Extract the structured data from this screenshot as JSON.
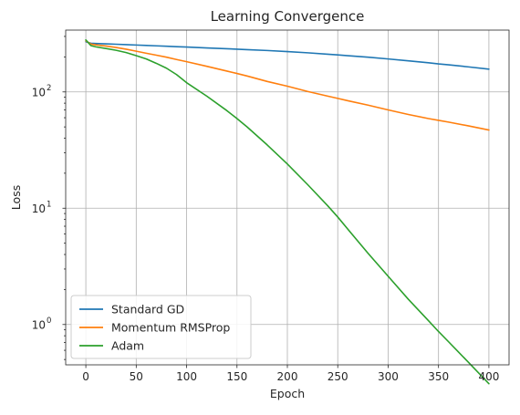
{
  "chart_data": {
    "type": "line",
    "title": "Learning Convergence",
    "xlabel": "Epoch",
    "ylabel": "Loss",
    "xlim": [
      -20,
      420
    ],
    "ylim": [
      0.45,
      340
    ],
    "yscale": "log",
    "grid": true,
    "legend_position": "lower-left",
    "x_ticks": [
      0,
      50,
      100,
      150,
      200,
      250,
      300,
      350,
      400
    ],
    "y_ticks": [
      {
        "value": 1,
        "base": "10",
        "exp": "0"
      },
      {
        "value": 10,
        "base": "10",
        "exp": "1"
      },
      {
        "value": 100,
        "base": "10",
        "exp": "2"
      }
    ],
    "x": [
      0,
      5,
      10,
      20,
      30,
      40,
      50,
      60,
      70,
      80,
      90,
      100,
      120,
      140,
      150,
      160,
      180,
      200,
      220,
      240,
      250,
      260,
      280,
      300,
      320,
      340,
      350,
      360,
      380,
      400
    ],
    "series": [
      {
        "name": "Standard GD",
        "color": "#1f77b4",
        "values": [
          270,
          262,
          261,
          259,
          257,
          255,
          253,
          251,
          249,
          247,
          245,
          243,
          239,
          235,
          233,
          231,
          227,
          222,
          217,
          211,
          208,
          205,
          199,
          192,
          185,
          178,
          174,
          171,
          164,
          157
        ]
      },
      {
        "name": "Momentum RMSProp",
        "color": "#ff7f0e",
        "values": [
          275,
          258,
          254,
          248,
          241,
          233,
          224,
          215,
          207,
          199,
          190,
          182,
          166,
          151,
          144,
          137,
          123,
          112,
          101,
          92,
          88,
          84,
          77,
          70,
          64,
          59,
          57,
          55,
          51,
          47
        ]
      },
      {
        "name": "Adam",
        "color": "#2ca02c",
        "values": [
          280,
          250,
          244,
          236,
          228,
          218,
          205,
          192,
          176,
          160,
          141,
          120,
          92,
          69,
          59,
          50,
          35,
          24,
          16,
          10.5,
          8.4,
          6.6,
          4.1,
          2.6,
          1.65,
          1.08,
          0.87,
          0.71,
          0.47,
          0.31
        ]
      }
    ]
  }
}
